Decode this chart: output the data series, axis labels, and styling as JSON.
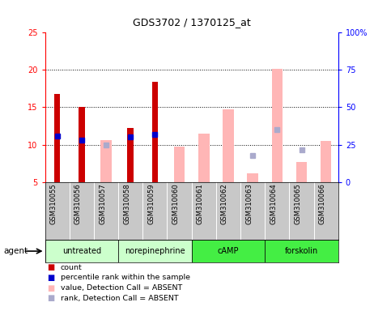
{
  "title": "GDS3702 / 1370125_at",
  "samples": [
    "GSM310055",
    "GSM310056",
    "GSM310057",
    "GSM310058",
    "GSM310059",
    "GSM310060",
    "GSM310061",
    "GSM310062",
    "GSM310063",
    "GSM310064",
    "GSM310065",
    "GSM310066"
  ],
  "group_labels": [
    "untreated",
    "norepinephrine",
    "cAMP",
    "forskolin"
  ],
  "group_starts": [
    0,
    3,
    6,
    9
  ],
  "group_ends": [
    2,
    5,
    8,
    11
  ],
  "group_colors": [
    "#ccffcc",
    "#ccffcc",
    "#44ee44",
    "#44ee44"
  ],
  "red_bars": [
    16.8,
    15.0,
    null,
    12.2,
    18.4,
    null,
    null,
    null,
    null,
    null,
    null,
    null
  ],
  "blue_squares": [
    11.1,
    10.6,
    null,
    11.0,
    11.4,
    null,
    null,
    null,
    null,
    null,
    null,
    null
  ],
  "pink_bars": [
    null,
    null,
    10.6,
    null,
    null,
    9.7,
    11.5,
    14.7,
    6.2,
    20.1,
    7.7,
    10.5
  ],
  "lavender_squares": [
    null,
    null,
    9.9,
    null,
    null,
    null,
    null,
    null,
    8.5,
    12.0,
    9.3,
    null
  ],
  "ylim_left": [
    5,
    25
  ],
  "ylim_right": [
    0,
    100
  ],
  "yticks_left": [
    5,
    10,
    15,
    20,
    25
  ],
  "yticks_right": [
    0,
    25,
    50,
    75,
    100
  ],
  "ytick_labels_right": [
    "0",
    "25",
    "50",
    "75",
    "100%"
  ],
  "hlines": [
    10,
    15,
    20
  ],
  "red_color": "#cc0000",
  "blue_color": "#0000cc",
  "pink_color": "#ffb6b6",
  "lavender_color": "#aaaacc",
  "red_bar_width": 0.25,
  "pink_bar_width": 0.45,
  "sample_bg": "#c8c8c8",
  "plot_bg": "#ffffff",
  "title_fontsize": 9,
  "tick_fontsize": 7,
  "label_fontsize": 7,
  "legend_items": [
    {
      "color": "#cc0000",
      "label": "count"
    },
    {
      "color": "#0000cc",
      "label": "percentile rank within the sample"
    },
    {
      "color": "#ffb6b6",
      "label": "value, Detection Call = ABSENT"
    },
    {
      "color": "#aaaacc",
      "label": "rank, Detection Call = ABSENT"
    }
  ]
}
